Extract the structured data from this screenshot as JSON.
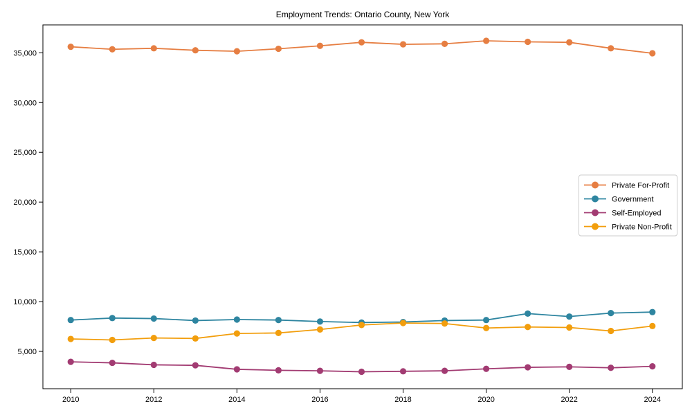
{
  "chart_data": {
    "type": "line",
    "title": "Employment Trends: Ontario County, New York",
    "xlabel": "",
    "ylabel": "",
    "grid": false,
    "legend_position": "right",
    "marker": "circle",
    "x": [
      2010,
      2011,
      2012,
      2013,
      2014,
      2015,
      2016,
      2017,
      2018,
      2019,
      2020,
      2021,
      2022,
      2023,
      2024
    ],
    "series": [
      {
        "name": "Private For-Profit",
        "color": "#E67E42",
        "values": [
          35600,
          35350,
          35450,
          35250,
          35150,
          35400,
          35700,
          36050,
          35850,
          35900,
          36200,
          36100,
          36050,
          35450,
          34950
        ]
      },
      {
        "name": "Government",
        "color": "#2E85A0",
        "values": [
          8150,
          8350,
          8300,
          8100,
          8200,
          8150,
          8000,
          7900,
          7950,
          8100,
          8150,
          8800,
          8500,
          8850,
          8950
        ]
      },
      {
        "name": "Self-Employed",
        "color": "#A23B72",
        "values": [
          3950,
          3850,
          3650,
          3600,
          3200,
          3100,
          3050,
          2950,
          3000,
          3050,
          3250,
          3400,
          3450,
          3350,
          3500
        ]
      },
      {
        "name": "Private Non-Profit",
        "color": "#F29E0D",
        "values": [
          6250,
          6150,
          6350,
          6300,
          6800,
          6850,
          7200,
          7650,
          7850,
          7800,
          7350,
          7450,
          7400,
          7050,
          7550
        ]
      }
    ],
    "xticks": {
      "values": [
        2010,
        2012,
        2014,
        2016,
        2018,
        2020,
        2022,
        2024
      ],
      "labels": [
        "2010",
        "2012",
        "2014",
        "2016",
        "2018",
        "2020",
        "2022",
        "2024"
      ]
    },
    "yticks": {
      "values": [
        5000,
        10000,
        15000,
        20000,
        25000,
        30000,
        35000
      ],
      "labels": [
        "5,000",
        "10,000",
        "15,000",
        "20,000",
        "25,000",
        "30,000",
        "35,000"
      ]
    },
    "xlim": [
      2009.33,
      2024.72
    ],
    "ylim": [
      1250,
      37800
    ]
  }
}
